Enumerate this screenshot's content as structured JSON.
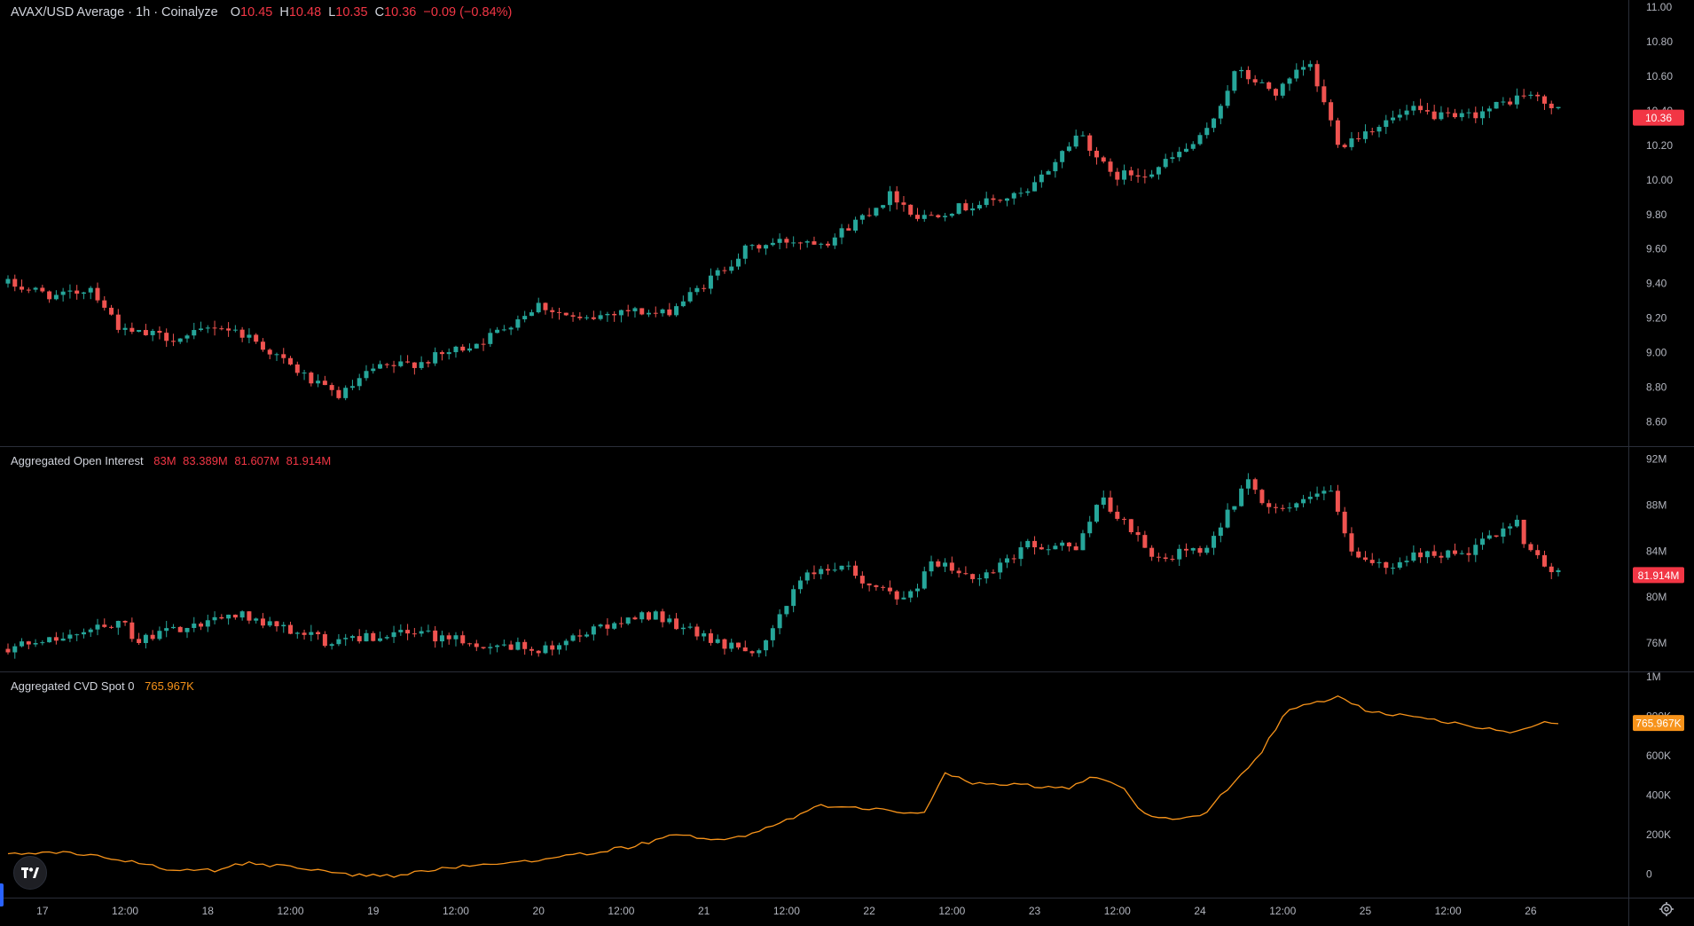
{
  "price_legend": {
    "title": "AVAX/USD Average · 1h · Coinalyze",
    "o_label": "O",
    "o": "10.45",
    "h_label": "H",
    "h": "10.48",
    "l_label": "L",
    "l": "10.35",
    "c_label": "C",
    "c": "10.36",
    "change": "−0.09 (−0.84%)"
  },
  "oi_legend": {
    "title": "Aggregated Open Interest",
    "values": [
      "83M",
      "83.389M",
      "81.607M",
      "81.914M"
    ]
  },
  "cvd_legend": {
    "title": "Aggregated CVD Spot 0",
    "value": "765.967K"
  },
  "colors": {
    "up": "#26a69a",
    "down": "#ef5350",
    "cvd_line": "#f7931a",
    "background": "#000000",
    "price_badge": "#f23645",
    "cvd_badge": "#f7931a"
  },
  "icons": {
    "logo": "tradingview-logo-icon",
    "settings": "gear-icon"
  },
  "chart_data": [
    {
      "type": "candlestick",
      "title": "AVAX/USD Average · 1h · Coinalyze",
      "interval": "1h",
      "ylim": [
        8.5,
        11.0
      ],
      "y_ticks": [
        "8.60",
        "8.80",
        "9.00",
        "9.20",
        "9.40",
        "9.60",
        "9.80",
        "10.00",
        "10.20",
        "10.40",
        "10.60",
        "10.80",
        "11.00"
      ],
      "last_value": "10.36",
      "waypoints": [
        [
          0,
          9.4
        ],
        [
          10,
          9.32
        ],
        [
          16,
          9.38
        ],
        [
          22,
          9.12
        ],
        [
          34,
          9.08
        ],
        [
          40,
          9.16
        ],
        [
          46,
          9.1
        ],
        [
          60,
          8.8
        ],
        [
          64,
          8.75
        ],
        [
          70,
          8.9
        ],
        [
          80,
          8.95
        ],
        [
          92,
          9.08
        ],
        [
          102,
          9.28
        ],
        [
          110,
          9.18
        ],
        [
          118,
          9.25
        ],
        [
          126,
          9.22
        ],
        [
          132,
          9.35
        ],
        [
          142,
          9.6
        ],
        [
          150,
          9.65
        ],
        [
          158,
          9.65
        ],
        [
          170,
          9.92
        ],
        [
          175,
          9.78
        ],
        [
          180,
          9.82
        ],
        [
          196,
          9.92
        ],
        [
          206,
          10.28
        ],
        [
          212,
          10.02
        ],
        [
          220,
          10.05
        ],
        [
          230,
          10.25
        ],
        [
          236,
          10.63
        ],
        [
          244,
          10.5
        ],
        [
          250,
          10.68
        ],
        [
          256,
          10.2
        ],
        [
          262,
          10.3
        ],
        [
          270,
          10.4
        ],
        [
          278,
          10.35
        ],
        [
          284,
          10.4
        ],
        [
          292,
          10.5
        ],
        [
          298,
          10.4
        ]
      ]
    },
    {
      "type": "candlestick",
      "title": "Aggregated Open Interest",
      "ylim": [
        74,
        92.5
      ],
      "y_ticks": [
        "76M",
        "80M",
        "84M",
        "88M",
        "92M"
      ],
      "last_value": "81.914M",
      "waypoints": [
        [
          0,
          75.5
        ],
        [
          14,
          77
        ],
        [
          22,
          78
        ],
        [
          24,
          76
        ],
        [
          30,
          77
        ],
        [
          44,
          78.5
        ],
        [
          56,
          77
        ],
        [
          62,
          76
        ],
        [
          76,
          77
        ],
        [
          90,
          76
        ],
        [
          104,
          75.5
        ],
        [
          112,
          77
        ],
        [
          124,
          78.5
        ],
        [
          136,
          76
        ],
        [
          144,
          75.5
        ],
        [
          148,
          78
        ],
        [
          152,
          81.5
        ],
        [
          160,
          83
        ],
        [
          166,
          81
        ],
        [
          172,
          79.5
        ],
        [
          178,
          83
        ],
        [
          186,
          81.5
        ],
        [
          196,
          84.5
        ],
        [
          206,
          84.5
        ],
        [
          210,
          88.5
        ],
        [
          216,
          86
        ],
        [
          220,
          83.5
        ],
        [
          230,
          84
        ],
        [
          234,
          87
        ],
        [
          238,
          90
        ],
        [
          242,
          88
        ],
        [
          248,
          88
        ],
        [
          254,
          89.5
        ],
        [
          258,
          84
        ],
        [
          264,
          82.5
        ],
        [
          274,
          84
        ],
        [
          280,
          83.5
        ],
        [
          290,
          87
        ],
        [
          292,
          84
        ],
        [
          298,
          82
        ]
      ]
    },
    {
      "type": "line",
      "title": "Aggregated CVD Spot 0",
      "series": [
        {
          "name": "Aggregated CVD Spot 0"
        }
      ],
      "ylim": [
        -100000,
        1000000
      ],
      "y_ticks": [
        "0",
        "200K",
        "400K",
        "600K",
        "800K",
        "1M"
      ],
      "last_value": "765.967K",
      "waypoints": [
        [
          0,
          100000
        ],
        [
          10,
          110000
        ],
        [
          20,
          80000
        ],
        [
          30,
          30000
        ],
        [
          40,
          20000
        ],
        [
          46,
          60000
        ],
        [
          56,
          30000
        ],
        [
          64,
          0
        ],
        [
          74,
          -10000
        ],
        [
          80,
          20000
        ],
        [
          92,
          50000
        ],
        [
          104,
          80000
        ],
        [
          112,
          110000
        ],
        [
          120,
          140000
        ],
        [
          128,
          200000
        ],
        [
          138,
          170000
        ],
        [
          148,
          250000
        ],
        [
          156,
          350000
        ],
        [
          166,
          330000
        ],
        [
          176,
          310000
        ],
        [
          180,
          510000
        ],
        [
          186,
          460000
        ],
        [
          196,
          450000
        ],
        [
          204,
          430000
        ],
        [
          208,
          500000
        ],
        [
          214,
          450000
        ],
        [
          218,
          310000
        ],
        [
          224,
          280000
        ],
        [
          230,
          310000
        ],
        [
          236,
          480000
        ],
        [
          240,
          580000
        ],
        [
          246,
          840000
        ],
        [
          256,
          900000
        ],
        [
          262,
          820000
        ],
        [
          272,
          790000
        ],
        [
          280,
          760000
        ],
        [
          288,
          720000
        ],
        [
          296,
          770000
        ],
        [
          298,
          766000
        ]
      ]
    }
  ],
  "x_axis": {
    "labels": [
      "17",
      "12:00",
      "18",
      "12:00",
      "19",
      "12:00",
      "20",
      "12:00",
      "21",
      "12:00",
      "22",
      "12:00",
      "23",
      "12:00",
      "24",
      "12:00",
      "25",
      "12:00",
      "26"
    ],
    "day_ticks": [
      {
        "label": "17",
        "hours": 0
      },
      {
        "label": "12:00",
        "hours": 12
      },
      {
        "label": "18",
        "hours": 24
      },
      {
        "label": "12:00",
        "hours": 36
      },
      {
        "label": "19",
        "hours": 48
      },
      {
        "label": "12:00",
        "hours": 60
      },
      {
        "label": "20",
        "hours": 72
      },
      {
        "label": "12:00",
        "hours": 84
      },
      {
        "label": "21",
        "hours": 96
      },
      {
        "label": "12:00",
        "hours": 108
      },
      {
        "label": "22",
        "hours": 120
      },
      {
        "label": "12:00",
        "hours": 132
      },
      {
        "label": "23",
        "hours": 144
      },
      {
        "label": "12:00",
        "hours": 156
      },
      {
        "label": "24",
        "hours": 168
      },
      {
        "label": "12:00",
        "hours": 180
      },
      {
        "label": "25",
        "hours": 192
      },
      {
        "label": "12:00",
        "hours": 204
      },
      {
        "label": "26",
        "hours": 216
      }
    ],
    "hours_before_first_label": 5,
    "candle_count": 226
  }
}
